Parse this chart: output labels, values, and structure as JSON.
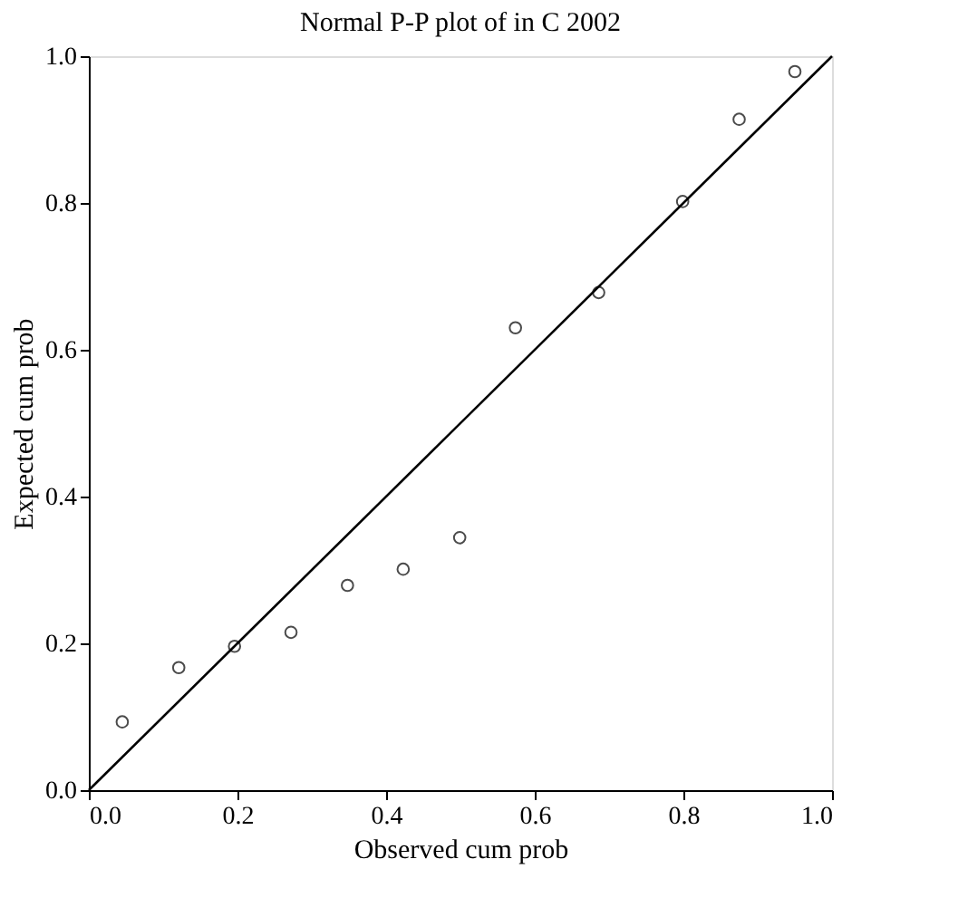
{
  "chart_data": {
    "type": "scatter",
    "title": "Normal P-P plot of in C 2002",
    "xlabel": "Observed cum prob",
    "ylabel": "Expected cum prob",
    "x": [
      0.045,
      0.121,
      0.196,
      0.272,
      0.348,
      0.423,
      0.499,
      0.574,
      0.686,
      0.799,
      0.875,
      0.95
    ],
    "series": [
      {
        "color": "#000000",
        "marker": "circle",
        "values": [
          0.093,
          0.167,
          0.196,
          0.215,
          0.279,
          0.301,
          0.344,
          0.63,
          0.678,
          0.802,
          0.914,
          0.979
        ]
      },
      {
        "type": "line",
        "color": "#000000",
        "x": [
          0,
          1
        ],
        "values": [
          0,
          1
        ]
      }
    ],
    "xlim": [
      0,
      1
    ],
    "ylim": [
      0,
      1
    ],
    "xticks": [
      {
        "value": 0,
        "label": "0.0"
      },
      0.2,
      0.4,
      0.6,
      0.8,
      {
        "value": 1,
        "label": "1.0"
      }
    ],
    "yticks": [
      {
        "value": 0,
        "label": "0.0"
      },
      0.2,
      0.4,
      0.6,
      0.8,
      {
        "value": 1,
        "label": "1.0"
      }
    ],
    "grid": false
  }
}
